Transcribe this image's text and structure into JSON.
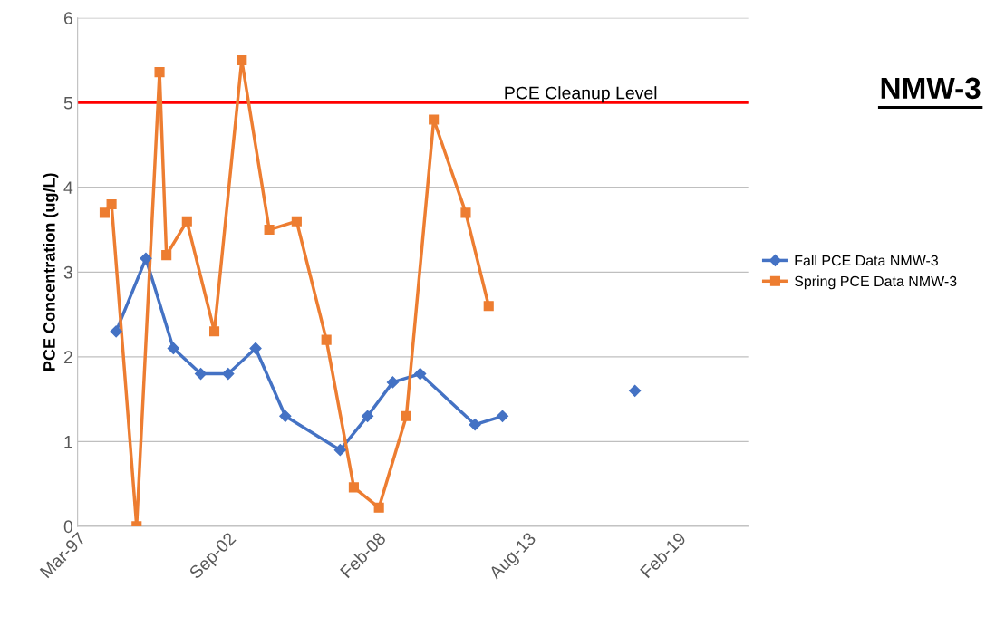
{
  "chart_data": {
    "type": "line",
    "title": "NMW-3",
    "ylabel": "PCE Concentration (ug/L)",
    "series": [
      {
        "name": "Fall PCE Data NMW-3",
        "color": "#4472c4",
        "marker": "diamond",
        "x": [
          "1998-08",
          "1999-09",
          "2000-09",
          "2001-09",
          "2002-09",
          "2003-09",
          "2004-10",
          "2006-10",
          "2007-10",
          "2008-09",
          "2009-09",
          "2011-09",
          "2012-09",
          "2015-09",
          "2017-07"
        ],
        "values": [
          2.3,
          3.16,
          2.1,
          1.8,
          1.8,
          2.1,
          1.3,
          0.9,
          1.3,
          1.7,
          1.8,
          1.2,
          1.3,
          null,
          1.6
        ]
      },
      {
        "name": "Spring PCE Data NMW-3",
        "color": "#ed7d31",
        "marker": "square",
        "x": [
          "1998-03",
          "1998-06",
          "1999-05",
          "2000-03",
          "2000-06",
          "2001-03",
          "2002-03",
          "2003-03",
          "2004-03",
          "2005-03",
          "2006-04",
          "2007-04",
          "2008-03",
          "2009-03",
          "2010-03",
          "2011-05",
          "2012-03"
        ],
        "values": [
          3.7,
          3.8,
          0,
          5.36,
          3.2,
          3.6,
          2.3,
          5.5,
          3.5,
          3.6,
          2.2,
          0.46,
          0.22,
          1.3,
          4.8,
          3.7,
          2.6
        ]
      }
    ],
    "ref_lines": [
      {
        "axis": "y",
        "value": 5,
        "label": "PCE Cleanup Level",
        "color": "#ff0000"
      }
    ],
    "xlim": [
      "1997-03-20",
      "2021-09-01"
    ],
    "xticks": [
      {
        "value": "1997-03-20",
        "label": "Mar-97"
      },
      {
        "value": "2002-09-10",
        "label": "Sep-02"
      },
      {
        "value": "2008-02-29",
        "label": "Feb-08"
      },
      {
        "value": "2013-08-18",
        "label": "Aug-13"
      },
      {
        "value": "2019-02-07",
        "label": "Feb-19"
      }
    ],
    "ylim": [
      0,
      6
    ],
    "yticks": [
      0,
      1,
      2,
      3,
      4,
      5,
      6
    ],
    "grid": "y",
    "legend": "right",
    "line_style": "solid"
  }
}
